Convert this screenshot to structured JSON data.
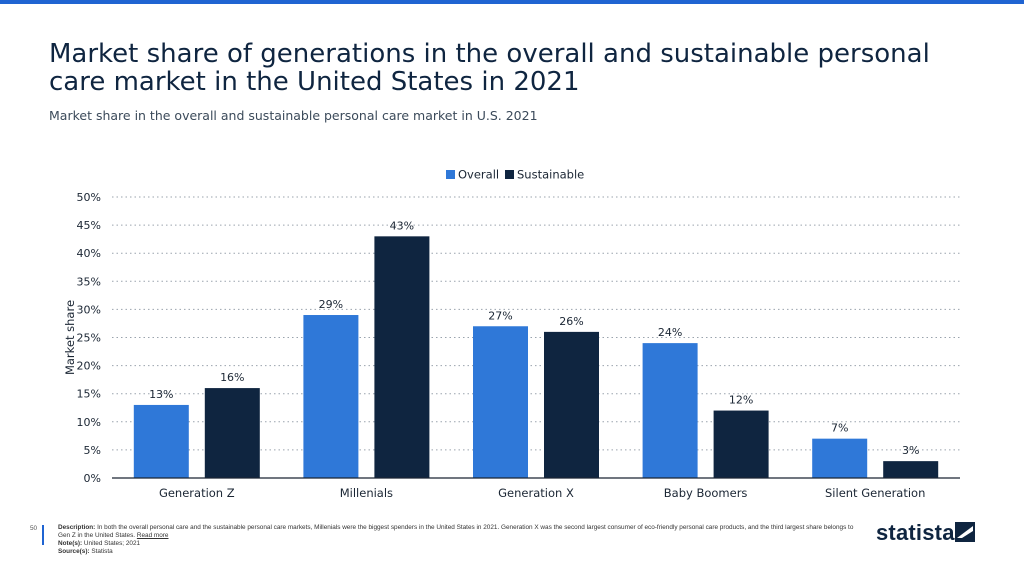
{
  "header": {
    "title": "Market share of generations in the overall and sustainable personal care market in the United States in 2021",
    "subtitle": "Market share in the overall and sustainable personal care market in U.S. 2021"
  },
  "colors": {
    "overall": "#2f78d8",
    "sustainable": "#0f2540",
    "accent": "#1f64d2"
  },
  "chart_data": {
    "type": "bar",
    "title": "",
    "ylabel": "Market share",
    "xlabel": "",
    "categories": [
      "Generation Z",
      "Millenials",
      "Generation X",
      "Baby Boomers",
      "Silent Generation"
    ],
    "series": [
      {
        "name": "Overall",
        "values": [
          13,
          29,
          27,
          24,
          7
        ]
      },
      {
        "name": "Sustainable",
        "values": [
          16,
          43,
          26,
          12,
          3
        ]
      }
    ],
    "ylim": [
      0,
      50
    ],
    "yticks": [
      "0%",
      "5%",
      "10%",
      "15%",
      "20%",
      "25%",
      "30%",
      "35%",
      "40%",
      "45%",
      "50%"
    ],
    "value_suffix": "%",
    "legend_position": "top-center",
    "grid": true
  },
  "footer": {
    "page_number": "50",
    "description_label": "Description:",
    "description": "In both the overall personal care and the sustainable personal care markets, Millenials were the biggest spenders in the United States in 2021. Generation X was the second largest consumer of eco-friendly personal care products, and the third largest share belongs to Gen Z in the United States.",
    "read_more": "Read more",
    "notes_label": "Note(s):",
    "notes": "United States; 2021",
    "source_label": "Source(s):",
    "source": "Statista"
  },
  "brand": {
    "logo_text": "statista"
  }
}
